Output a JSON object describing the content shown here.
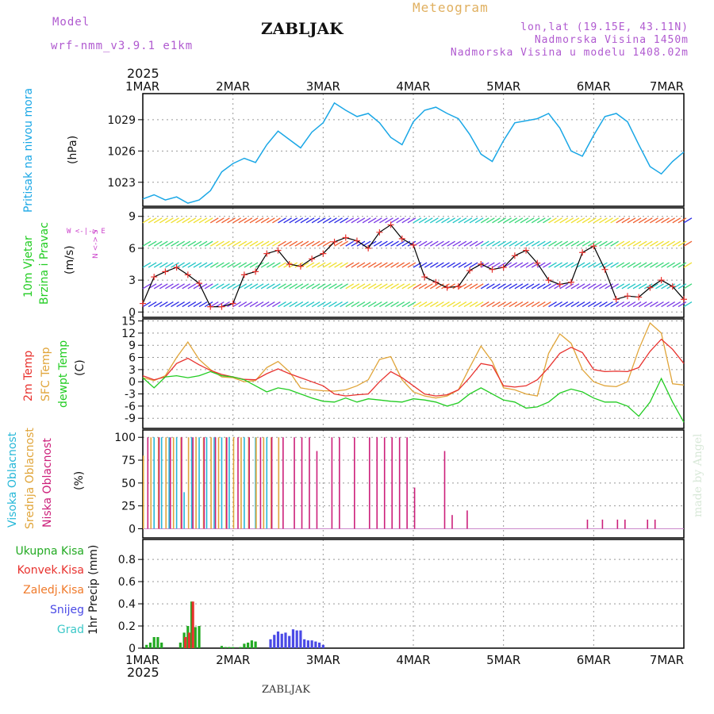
{
  "header": {
    "model_label": "Model",
    "model_name": "wrf-nmm_v3.9.1 e1km",
    "station_title": "ZABLJAK",
    "meteogram_label": "Meteogram",
    "lonlat": "lon,lat (19.15E, 43.11N)",
    "altitude": "Nadmorska Visina 1450m",
    "model_altitude": "Nadmorska Visina u modelu 1408.02m",
    "year_top": "2025",
    "year_bottom": "2025",
    "footer_station": "ZABLJAK",
    "credit": "made by Angel"
  },
  "colors": {
    "pressure": "#1aa7e6",
    "temp2m": "#e8322e",
    "sfc_temp": "#e0a53a",
    "dewpoint": "#22cc22",
    "low_cloud": "#cc1f7a",
    "mid_cloud": "#e0a53a",
    "high_cloud": "#27b8d8",
    "total_precip": "#22aa22",
    "convective": "#e8322e",
    "freezing": "#f07a2a",
    "snow": "#4a4ae6",
    "hail": "#3cc8c8",
    "wind_axis_label": "#cc44cc"
  },
  "axis": {
    "x_ticks": [
      "1MAR",
      "2MAR",
      "3MAR",
      "4MAR",
      "5MAR",
      "6MAR",
      "7MAR"
    ]
  },
  "chart_data": [
    {
      "type": "line",
      "title": "Pritisak na nivou mora",
      "ylabel": "(hPa)",
      "ylim": [
        1020.7,
        1031.5
      ],
      "yticks": [
        1023,
        1026,
        1029
      ],
      "grid": true,
      "x_unit": "hours since 1MAR 00UTC",
      "series": [
        {
          "name": "Pritisak na nivou mora",
          "x": [
            0,
            3,
            6,
            9,
            12,
            15,
            18,
            21,
            24,
            27,
            30,
            33,
            36,
            39,
            42,
            45,
            48,
            51,
            54,
            57,
            60,
            63,
            66,
            69,
            72,
            75,
            78,
            81,
            84,
            87,
            90,
            93,
            96,
            99,
            102,
            105,
            108,
            111,
            114,
            117,
            120,
            123,
            126,
            129,
            132,
            135,
            138,
            141,
            144
          ],
          "values": [
            1021.4,
            1021.8,
            1021.3,
            1021.6,
            1021.0,
            1021.3,
            1022.2,
            1024.0,
            1024.8,
            1025.3,
            1024.9,
            1026.6,
            1027.9,
            1027.1,
            1026.3,
            1027.8,
            1028.7,
            1030.6,
            1029.9,
            1029.3,
            1029.6,
            1028.7,
            1027.3,
            1026.6,
            1028.8,
            1029.9,
            1030.2,
            1029.6,
            1029.1,
            1027.6,
            1025.7,
            1025.0,
            1027.0,
            1028.7,
            1028.9,
            1029.1,
            1029.6,
            1028.2,
            1026.0,
            1025.5,
            1027.5,
            1029.3,
            1029.6,
            1028.8,
            1026.6,
            1024.5,
            1023.8,
            1025.0,
            1025.9
          ]
        }
      ]
    },
    {
      "type": "line",
      "title": "10m Vjetar Brzina i Pravac",
      "ylabel": "(m/s)",
      "ylim": [
        -0.5,
        9.8
      ],
      "yticks": [
        0,
        3,
        6,
        9
      ],
      "grid": true,
      "compass": "W <-|-> E",
      "compass_ns": "N <-> S",
      "x_unit": "hours since 1MAR 00UTC",
      "series": [
        {
          "name": "10m Vjetar",
          "x": [
            0,
            3,
            6,
            9,
            12,
            15,
            18,
            21,
            24,
            27,
            30,
            33,
            36,
            39,
            42,
            45,
            48,
            51,
            54,
            57,
            60,
            63,
            66,
            69,
            72,
            75,
            78,
            81,
            84,
            87,
            90,
            93,
            96,
            99,
            102,
            105,
            108,
            111,
            114,
            117,
            120,
            123,
            126,
            129,
            132,
            135,
            138,
            141,
            144
          ],
          "values": [
            0.8,
            3.3,
            3.8,
            4.2,
            3.5,
            2.7,
            0.5,
            0.5,
            0.8,
            3.5,
            3.8,
            5.5,
            5.8,
            4.5,
            4.3,
            5.0,
            5.5,
            6.6,
            7.0,
            6.7,
            6.0,
            7.5,
            8.2,
            6.9,
            6.3,
            3.3,
            2.8,
            2.3,
            2.4,
            3.9,
            4.5,
            4.0,
            4.2,
            5.3,
            5.8,
            4.6,
            3.0,
            2.6,
            2.8,
            5.6,
            6.2,
            4.0,
            1.2,
            1.5,
            1.4,
            2.3,
            3.0,
            2.4,
            1.2
          ]
        }
      ]
    },
    {
      "type": "line",
      "ylabel": "(C)",
      "ylim": [
        -11.5,
        15.5
      ],
      "yticks": [
        -9,
        -6,
        -3,
        0,
        3,
        6,
        9,
        12,
        15
      ],
      "grid": true,
      "x_unit": "hours since 1MAR 00UTC",
      "series": [
        {
          "name": "2m Temp",
          "x": [
            0,
            3,
            6,
            9,
            12,
            15,
            18,
            21,
            24,
            27,
            30,
            33,
            36,
            39,
            42,
            45,
            48,
            51,
            54,
            57,
            60,
            63,
            66,
            69,
            72,
            75,
            78,
            81,
            84,
            87,
            90,
            93,
            96,
            99,
            102,
            105,
            108,
            111,
            114,
            117,
            120,
            123,
            126,
            129,
            132,
            135,
            138,
            141,
            144
          ],
          "values": [
            1.5,
            0.5,
            1.2,
            4.5,
            5.8,
            4.2,
            2.8,
            1.8,
            1.2,
            0.6,
            0.5,
            2.0,
            3.2,
            2.0,
            1.0,
            0.0,
            -1.0,
            -3.0,
            -3.5,
            -3.2,
            -3.0,
            0.0,
            2.5,
            1.0,
            -1.0,
            -3.0,
            -3.5,
            -3.2,
            -2.0,
            1.0,
            4.5,
            4.0,
            -1.0,
            -1.3,
            -1.0,
            0.5,
            3.5,
            7.0,
            8.5,
            7.2,
            3.0,
            2.5,
            2.6,
            2.5,
            3.5,
            7.5,
            10.5,
            8.0,
            4.5
          ]
        },
        {
          "name": "SFC Temp",
          "x": [
            0,
            3,
            6,
            9,
            12,
            15,
            18,
            21,
            24,
            27,
            30,
            33,
            36,
            39,
            42,
            45,
            48,
            51,
            54,
            57,
            60,
            63,
            66,
            69,
            72,
            75,
            78,
            81,
            84,
            87,
            90,
            93,
            96,
            99,
            102,
            105,
            108,
            111,
            114,
            117,
            120,
            123,
            126,
            129,
            132,
            135,
            138,
            141,
            144
          ],
          "values": [
            1.0,
            0.3,
            1.5,
            6.0,
            9.8,
            5.5,
            3.0,
            1.2,
            1.0,
            0.0,
            0.3,
            3.5,
            5.0,
            2.5,
            -1.5,
            -2.0,
            -2.2,
            -2.3,
            -2.0,
            -1.0,
            0.5,
            5.5,
            6.2,
            0.5,
            -2.5,
            -3.5,
            -4.0,
            -3.5,
            -2.0,
            3.5,
            8.8,
            5.0,
            -1.5,
            -2.0,
            -3.0,
            -3.5,
            7.0,
            11.8,
            9.5,
            3.0,
            0.0,
            -1.0,
            -1.2,
            0.0,
            8.0,
            14.5,
            12.0,
            -0.5,
            -0.8
          ]
        },
        {
          "name": "dewpt Temp",
          "x": [
            0,
            3,
            6,
            9,
            12,
            15,
            18,
            21,
            24,
            27,
            30,
            33,
            36,
            39,
            42,
            45,
            48,
            51,
            54,
            57,
            60,
            63,
            66,
            69,
            72,
            75,
            78,
            81,
            84,
            87,
            90,
            93,
            96,
            99,
            102,
            105,
            108,
            111,
            114,
            117,
            120,
            123,
            126,
            129,
            132,
            135,
            138,
            141,
            144
          ],
          "values": [
            1.0,
            -1.5,
            1.2,
            1.5,
            1.0,
            1.5,
            2.5,
            1.5,
            1.2,
            0.5,
            -1.0,
            -2.5,
            -1.5,
            -2.0,
            -3.0,
            -4.0,
            -4.8,
            -5.0,
            -4.0,
            -5.0,
            -4.2,
            -4.5,
            -4.8,
            -5.0,
            -4.2,
            -4.5,
            -5.0,
            -6.0,
            -5.2,
            -3.0,
            -1.5,
            -3.0,
            -4.5,
            -5.0,
            -6.5,
            -6.2,
            -5.0,
            -2.8,
            -1.8,
            -2.5,
            -4.0,
            -5.0,
            -5.0,
            -6.0,
            -8.5,
            -5.0,
            0.8,
            -5.0,
            -10.0
          ]
        }
      ]
    },
    {
      "type": "bar",
      "ylabel": "(%)",
      "ylim": [
        -10,
        108
      ],
      "yticks": [
        0,
        25,
        50,
        75,
        100
      ],
      "grid": true,
      "x_unit": "hours since 1MAR 00UTC",
      "series": [
        {
          "name": "Visoka Oblacnost",
          "x": [
            3,
            5,
            7,
            9,
            11,
            13,
            15,
            17,
            19,
            21,
            23,
            27,
            30,
            33
          ],
          "values": [
            100,
            100,
            100,
            100,
            40,
            100,
            100,
            100,
            100,
            100,
            100,
            100,
            100,
            100
          ]
        },
        {
          "name": "Srednja Oblacnost",
          "x": [
            0,
            2,
            4,
            6,
            8,
            10,
            12,
            14,
            16,
            18,
            20,
            22,
            24,
            26,
            28,
            30,
            32,
            34,
            36
          ],
          "values": [
            80,
            100,
            100,
            100,
            100,
            100,
            100,
            100,
            100,
            100,
            100,
            100,
            100,
            100,
            100,
            100,
            100,
            100,
            100
          ]
        },
        {
          "name": "Niska Oblacnost",
          "x": [
            1,
            4,
            7,
            10,
            13,
            16,
            19,
            22,
            25,
            28,
            31,
            34,
            37,
            40,
            42,
            44,
            46,
            50,
            52,
            56,
            60,
            62,
            64,
            66,
            68,
            70,
            72,
            80,
            82,
            86,
            118,
            122,
            126,
            128,
            134,
            136
          ],
          "values": [
            100,
            100,
            100,
            100,
            100,
            100,
            100,
            100,
            100,
            100,
            100,
            100,
            100,
            100,
            100,
            100,
            85,
            100,
            100,
            100,
            100,
            100,
            100,
            100,
            100,
            100,
            45,
            85,
            15,
            20,
            10,
            10,
            10,
            10,
            10,
            10
          ]
        }
      ]
    },
    {
      "type": "bar",
      "ylabel": "1hr Precip (mm)",
      "ylim": [
        0,
        0.98
      ],
      "yticks": [
        0,
        0.2,
        0.4,
        0.6,
        0.8
      ],
      "grid": true,
      "x_unit": "hours since 1MAR 00UTC",
      "series": [
        {
          "name": "Ukupna Kisa",
          "x": [
            1,
            2,
            3,
            4,
            5,
            10,
            11,
            12,
            13,
            14,
            15,
            21,
            22,
            23,
            24,
            26,
            27,
            28,
            29,
            30
          ],
          "values": [
            0.03,
            0.05,
            0.1,
            0.1,
            0.05,
            0.05,
            0.14,
            0.2,
            0.42,
            0.19,
            0.2,
            0.02,
            0.01,
            0.01,
            0.01,
            0.01,
            0.04,
            0.05,
            0.07,
            0.06
          ]
        },
        {
          "name": "Konvek.Kisa",
          "x": [
            11,
            12,
            13
          ],
          "values": [
            0.1,
            0.14,
            0.42
          ]
        },
        {
          "name": "Zaledj.Kisa",
          "x": [],
          "values": []
        },
        {
          "name": "Snijeg",
          "x": [
            34,
            35,
            36,
            37,
            38,
            39,
            40,
            41,
            42,
            43,
            44,
            45,
            46,
            47,
            48
          ],
          "values": [
            0.08,
            0.12,
            0.15,
            0.13,
            0.14,
            0.11,
            0.17,
            0.16,
            0.16,
            0.08,
            0.07,
            0.07,
            0.06,
            0.05,
            0.03
          ]
        },
        {
          "name": "Grad",
          "x": [],
          "values": []
        }
      ]
    }
  ]
}
